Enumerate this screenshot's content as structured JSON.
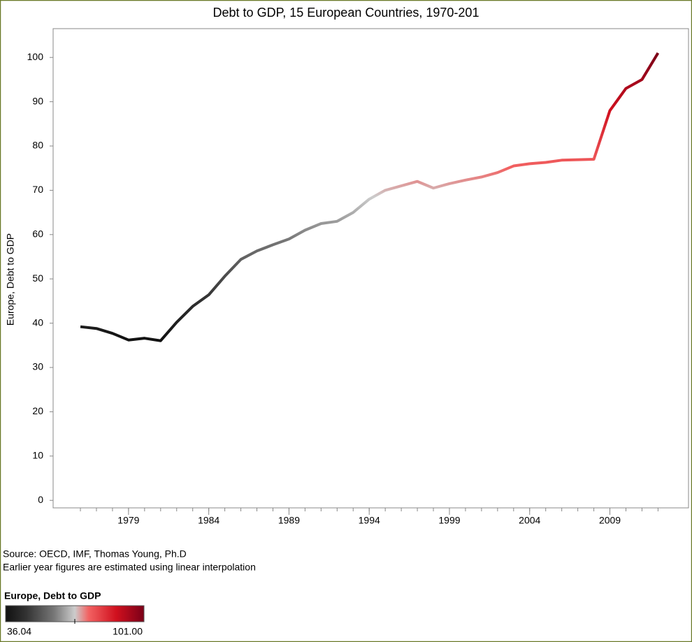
{
  "chart_data": {
    "type": "line",
    "title": "Debt to GDP, 15 European Countries, 1970-201",
    "y_label": "Europe, Debt to GDP",
    "notes": [
      "Source: OECD, IMF, Thomas Young, Ph.D",
      "Earlier year figures are estimated using linear interpolation"
    ],
    "x": [
      1976,
      1977,
      1978,
      1979,
      1980,
      1981,
      1982,
      1983,
      1984,
      1985,
      1986,
      1987,
      1988,
      1989,
      1990,
      1991,
      1992,
      1993,
      1994,
      1995,
      1996,
      1997,
      1998,
      1999,
      2000,
      2001,
      2002,
      2003,
      2004,
      2005,
      2006,
      2007,
      2008,
      2009,
      2010,
      2011,
      2012
    ],
    "series": [
      {
        "name": "Europe, Debt to GDP",
        "values": [
          39.2,
          38.8,
          37.7,
          36.2,
          36.6,
          36.04,
          40.2,
          43.8,
          46.4,
          50.6,
          54.4,
          56.3,
          57.7,
          59.0,
          61.0,
          62.5,
          63.0,
          65.0,
          68.0,
          70.0,
          71.0,
          72.0,
          70.5,
          71.5,
          72.3,
          73.0,
          74.0,
          75.5,
          76.0,
          76.3,
          76.8,
          76.9,
          77.0,
          88.0,
          93.0,
          95.0,
          101.0
        ]
      }
    ],
    "xlim": [
      1974.3,
      2013.9
    ],
    "xticks": [
      1979,
      1984,
      1989,
      1994,
      1999,
      2004,
      2009
    ],
    "ylim": [
      -1.7,
      106.5
    ],
    "yticks": [
      0,
      10,
      20,
      30,
      40,
      50,
      60,
      70,
      80,
      90,
      100
    ],
    "legend": {
      "title": "Europe, Debt to GDP",
      "min": 36.04,
      "max": {
        "value": 101,
        "label": "101.00"
      }
    },
    "colorscale": [
      {
        "offset": 0,
        "color": "#111111"
      },
      {
        "offset": 0.15,
        "color": "#333333"
      },
      {
        "offset": 0.35,
        "color": "#777777"
      },
      {
        "offset": 0.5,
        "color": "#cccccc"
      },
      {
        "offset": 0.6,
        "color": "#f26262"
      },
      {
        "offset": 0.8,
        "color": "#d0101e"
      },
      {
        "offset": 1,
        "color": "#7a0018"
      }
    ]
  }
}
